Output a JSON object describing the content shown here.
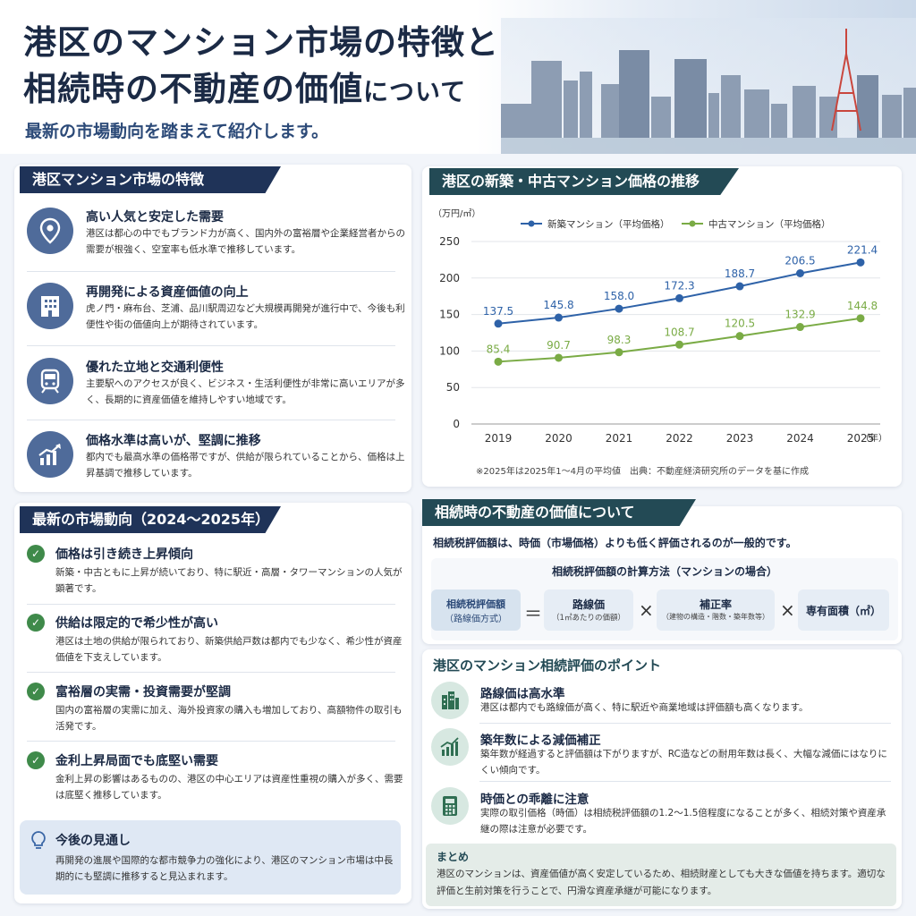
{
  "header": {
    "title_line1": "港区のマンション市場の特徴と",
    "title_line2_main": "相続時の不動産の価値",
    "title_line2_small": "について",
    "subtitle": "最新の市場動向を踏まえて紹介します。"
  },
  "features": {
    "title": "港区マンション市場の特徴",
    "items": [
      {
        "icon": "map-pin-icon",
        "heading": "高い人気と安定した需要",
        "body": "港区は都心の中でもブランド力が高く、国内外の富裕層や企業経営者からの需要が根強く、空室率も低水準で推移しています。"
      },
      {
        "icon": "building-icon",
        "heading": "再開発による資産価値の向上",
        "body": "虎ノ門・麻布台、芝浦、品川駅周辺など大規模再開発が進行中で、今後も利便性や街の価値向上が期待されています。"
      },
      {
        "icon": "train-icon",
        "heading": "優れた立地と交通利便性",
        "body": "主要駅へのアクセスが良く、ビジネス・生活利便性が非常に高いエリアが多く、長期的に資産価値を維持しやすい地域です。"
      },
      {
        "icon": "growth-chart-icon",
        "heading": "価格水準は高いが、堅調に推移",
        "body": "都内でも最高水準の価格帯ですが、供給が限られていることから、価格は上昇基調で推移しています。"
      }
    ]
  },
  "trends": {
    "title": "最新の市場動向（2024～2025年）",
    "items": [
      {
        "heading": "価格は引き続き上昇傾向",
        "body": "新築・中古ともに上昇が続いており、特に駅近・高層・タワーマンションの人気が顕著です。"
      },
      {
        "heading": "供給は限定的で希少性が高い",
        "body": "港区は土地の供給が限られており、新築供給戸数は都内でも少なく、希少性が資産価値を下支えしています。"
      },
      {
        "heading": "富裕層の実需・投資需要が堅調",
        "body": "国内の富裕層の実需に加え、海外投資家の購入も増加しており、高額物件の取引も活発です。"
      },
      {
        "heading": "金利上昇局面でも底堅い需要",
        "body": "金利上昇の影響はあるものの、港区の中心エリアは資産性重視の購入が多く、需要は底堅く推移しています。"
      }
    ],
    "check": "✓"
  },
  "outlook": {
    "title": "今後の見通し",
    "body": "再開発の進展や国際的な都市競争力の強化により、港区のマンション市場は中長期的にも堅調に推移すると見込まれます。"
  },
  "chart_panel": {
    "title": "港区の新築・中古マンション価格の推移",
    "note": "※2025年は2025年1～4月の平均値　出典：不動産経済研究所のデータを基に作成"
  },
  "chart_data": {
    "type": "line",
    "ylabel": "（万円/㎡）",
    "xunit": "（年）",
    "categories": [
      "2019",
      "2020",
      "2021",
      "2022",
      "2023",
      "2024",
      "2025"
    ],
    "ylim": [
      0,
      250
    ],
    "yticks": [
      0,
      50,
      100,
      150,
      200,
      250
    ],
    "legend_position": "top",
    "series": [
      {
        "name": "新築マンション（平均価格）",
        "color": "#2e62a8",
        "values": [
          137.5,
          145.8,
          158.0,
          172.3,
          188.7,
          206.5,
          221.4
        ],
        "labels": [
          "137.5",
          "145.8",
          "158.0",
          "172.3",
          "188.7",
          "206.5",
          "221.4"
        ]
      },
      {
        "name": "中古マンション（平均価格）",
        "color": "#7aab45",
        "values": [
          85.4,
          90.7,
          98.3,
          108.7,
          120.5,
          132.9,
          144.8
        ],
        "labels": [
          "85.4",
          "90.7",
          "98.3",
          "108.7",
          "120.5",
          "132.9",
          "144.8"
        ]
      }
    ]
  },
  "inheritance": {
    "title": "相続時の不動産の価値について",
    "intro": "相続税評価額は、時価（市場価格）よりも低く評価されるのが一般的です。",
    "formula_title": "相続税評価額の計算方法（マンションの場合）",
    "term1_main": "相続税評価額",
    "term1_sub": "（路線価方式）",
    "eq": "＝",
    "term2_main": "路線価",
    "term2_sub": "（1㎡あたりの価額）",
    "times": "×",
    "term3_main": "補正率",
    "term3_sub": "（建物の構造・階数・築年数等）",
    "term4_main": "専有面積（㎡）"
  },
  "points": {
    "title": "港区のマンション相続評価のポイント",
    "items": [
      {
        "icon": "building-icon",
        "heading": "路線価は高水準",
        "body": "港区は都内でも路線価が高く、特に駅近や商業地域は評価額も高くなります。"
      },
      {
        "icon": "growth-chart-icon",
        "heading": "築年数による減価補正",
        "body": "築年数が経過すると評価額は下がりますが、RC造などの耐用年数は長く、大幅な減価にはなりにくい傾向です。"
      },
      {
        "icon": "calculator-icon",
        "heading": "時価との乖離に注意",
        "body": "実際の取引価格（時価）は相続税評価額の1.2～1.5倍程度になることが多く、相続対策や資産承継の際は注意が必要です。"
      }
    ]
  },
  "summary": {
    "title": "まとめ",
    "body": "港区のマンションは、資産価値が高く安定しているため、相続財産としても大きな価値を持ちます。適切な評価と生前対策を行うことで、円滑な資産承継が可能になります。"
  }
}
